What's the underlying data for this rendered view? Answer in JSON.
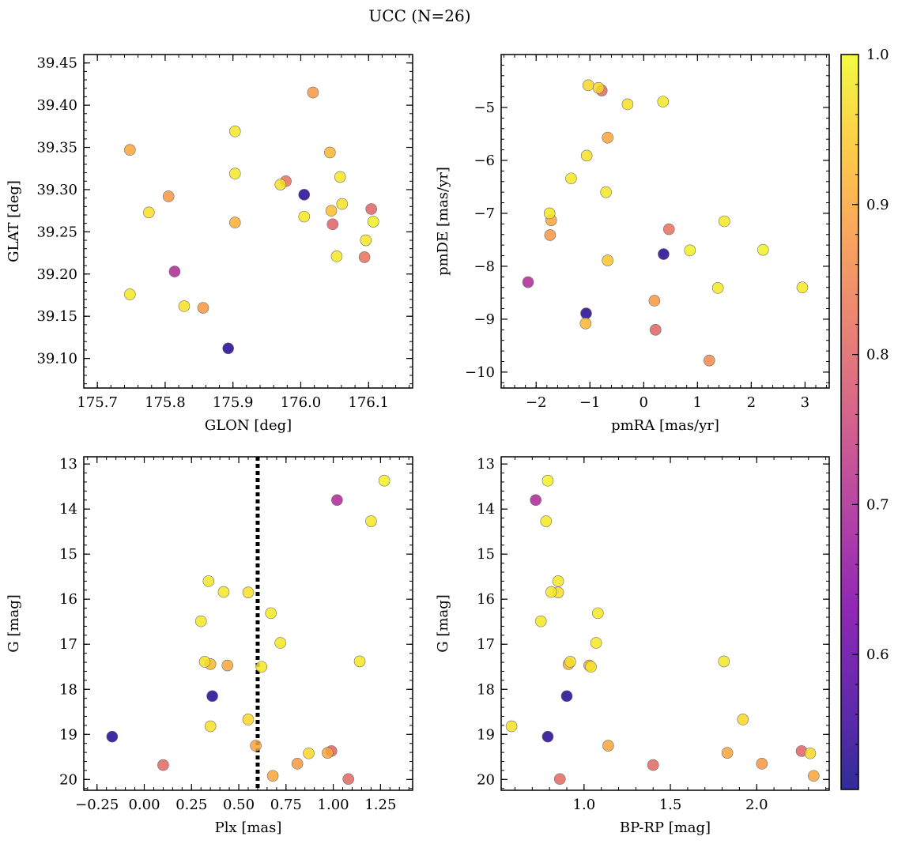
{
  "title": "UCC (N=26)",
  "colorbar": {
    "min": 0.51,
    "max": 1.0,
    "ticks": [
      0.6,
      0.7,
      0.8,
      0.9,
      1.0
    ],
    "tick_labels": [
      "0.6",
      "0.7",
      "0.8",
      "0.9",
      "1.0"
    ],
    "colormap": "plasma"
  },
  "chart_data": [
    {
      "type": "scatter",
      "panel": "top-left",
      "xlabel": "GLON [deg]",
      "ylabel": "GLAT [deg]",
      "xlim": [
        175.68,
        176.165
      ],
      "ylim": [
        39.065,
        39.46
      ],
      "xticks": [
        175.7,
        175.8,
        175.9,
        176.0,
        176.1
      ],
      "xtick_labels": [
        "175.7",
        "175.8",
        "175.9",
        "176.0",
        "176.1"
      ],
      "yticks": [
        39.1,
        39.15,
        39.2,
        39.25,
        39.3,
        39.35,
        39.4,
        39.45
      ],
      "ytick_labels": [
        "39.10",
        "39.15",
        "39.20",
        "39.25",
        "39.30",
        "39.35",
        "39.40",
        "39.45"
      ],
      "points": [
        {
          "x": 175.748,
          "y": 39.347,
          "c": 0.9
        },
        {
          "x": 175.748,
          "y": 39.176,
          "c": 0.98
        },
        {
          "x": 175.776,
          "y": 39.273,
          "c": 0.97
        },
        {
          "x": 175.805,
          "y": 39.292,
          "c": 0.88
        },
        {
          "x": 175.814,
          "y": 39.203,
          "c": 0.7
        },
        {
          "x": 175.828,
          "y": 39.162,
          "c": 0.97
        },
        {
          "x": 175.856,
          "y": 39.16,
          "c": 0.88
        },
        {
          "x": 175.893,
          "y": 39.112,
          "c": 0.53
        },
        {
          "x": 175.903,
          "y": 39.369,
          "c": 0.98
        },
        {
          "x": 175.903,
          "y": 39.319,
          "c": 0.98
        },
        {
          "x": 175.903,
          "y": 39.261,
          "c": 0.91
        },
        {
          "x": 175.97,
          "y": 39.306,
          "c": 0.97
        },
        {
          "x": 175.978,
          "y": 39.31,
          "c": 0.82
        },
        {
          "x": 176.005,
          "y": 39.294,
          "c": 0.53
        },
        {
          "x": 176.005,
          "y": 39.268,
          "c": 0.98
        },
        {
          "x": 176.018,
          "y": 39.415,
          "c": 0.88
        },
        {
          "x": 176.043,
          "y": 39.344,
          "c": 0.92
        },
        {
          "x": 176.045,
          "y": 39.275,
          "c": 0.93
        },
        {
          "x": 176.047,
          "y": 39.259,
          "c": 0.8
        },
        {
          "x": 176.053,
          "y": 39.221,
          "c": 0.98
        },
        {
          "x": 176.058,
          "y": 39.315,
          "c": 0.98
        },
        {
          "x": 176.061,
          "y": 39.283,
          "c": 0.97
        },
        {
          "x": 176.094,
          "y": 39.22,
          "c": 0.82
        },
        {
          "x": 176.096,
          "y": 39.24,
          "c": 0.98
        },
        {
          "x": 176.104,
          "y": 39.277,
          "c": 0.8
        },
        {
          "x": 176.107,
          "y": 39.262,
          "c": 0.99
        }
      ]
    },
    {
      "type": "scatter",
      "panel": "top-right",
      "xlabel": "pmRA [mas/yr]",
      "ylabel": "pmDE [mas/yr]",
      "xlim": [
        -2.65,
        3.45
      ],
      "ylim": [
        -10.3,
        -4.0
      ],
      "xticks": [
        -2,
        -1,
        0,
        1,
        2,
        3
      ],
      "xtick_labels": [
        "−2",
        "−1",
        "0",
        "1",
        "2",
        "3"
      ],
      "yticks": [
        -10,
        -9,
        -8,
        -7,
        -6,
        -5
      ],
      "ytick_labels": [
        "−10",
        "−9",
        "−8",
        "−7",
        "−6",
        "−5"
      ],
      "points": [
        {
          "x": -1.03,
          "y": -4.58,
          "c": 0.96
        },
        {
          "x": -0.84,
          "y": -4.63,
          "c": 0.96
        },
        {
          "x": -0.78,
          "y": -4.68,
          "c": 0.81
        },
        {
          "x": -0.3,
          "y": -4.94,
          "c": 0.97
        },
        {
          "x": 0.36,
          "y": -4.89,
          "c": 0.98
        },
        {
          "x": -1.06,
          "y": -5.91,
          "c": 0.97
        },
        {
          "x": -0.67,
          "y": -5.57,
          "c": 0.9
        },
        {
          "x": -1.35,
          "y": -6.34,
          "c": 0.98
        },
        {
          "x": -0.7,
          "y": -6.6,
          "c": 0.98
        },
        {
          "x": -1.75,
          "y": -7.0,
          "c": 0.98
        },
        {
          "x": -1.72,
          "y": -7.13,
          "c": 0.9
        },
        {
          "x": -1.74,
          "y": -7.41,
          "c": 0.88
        },
        {
          "x": 0.47,
          "y": -7.3,
          "c": 0.82
        },
        {
          "x": 1.5,
          "y": -7.15,
          "c": 0.98
        },
        {
          "x": 2.22,
          "y": -7.69,
          "c": 0.99
        },
        {
          "x": 0.86,
          "y": -7.7,
          "c": 0.99
        },
        {
          "x": 0.37,
          "y": -7.77,
          "c": 0.53
        },
        {
          "x": -0.67,
          "y": -7.89,
          "c": 0.94
        },
        {
          "x": -2.15,
          "y": -8.3,
          "c": 0.7
        },
        {
          "x": 1.38,
          "y": -8.41,
          "c": 0.98
        },
        {
          "x": 2.95,
          "y": -8.4,
          "c": 0.98
        },
        {
          "x": -1.07,
          "y": -8.89,
          "c": 0.53
        },
        {
          "x": -1.08,
          "y": -9.08,
          "c": 0.92
        },
        {
          "x": 0.2,
          "y": -8.65,
          "c": 0.88
        },
        {
          "x": 0.22,
          "y": -9.2,
          "c": 0.8
        },
        {
          "x": 1.22,
          "y": -9.78,
          "c": 0.86
        }
      ]
    },
    {
      "type": "scatter",
      "panel": "bottom-left",
      "xlabel": "Plx [mas]",
      "ylabel": "G [mag]",
      "xlim": [
        -0.32,
        1.42
      ],
      "ylim": [
        20.24,
        12.84
      ],
      "xticks": [
        -0.25,
        0.0,
        0.25,
        0.5,
        0.75,
        1.0,
        1.25
      ],
      "xtick_labels": [
        "−0.25",
        "0.00",
        "0.25",
        "0.50",
        "0.75",
        "1.00",
        "1.25"
      ],
      "yticks": [
        13,
        14,
        15,
        16,
        17,
        18,
        19,
        20
      ],
      "ytick_labels": [
        "13",
        "14",
        "15",
        "16",
        "17",
        "18",
        "19",
        "20"
      ],
      "vline": {
        "x": 0.6,
        "style": "dotted"
      },
      "points": [
        {
          "x": 1.27,
          "y": 13.37,
          "c": 0.99
        },
        {
          "x": 1.02,
          "y": 13.8,
          "c": 0.7
        },
        {
          "x": 1.2,
          "y": 14.27,
          "c": 0.98
        },
        {
          "x": 0.34,
          "y": 15.6,
          "c": 0.98
        },
        {
          "x": 0.42,
          "y": 15.84,
          "c": 0.98
        },
        {
          "x": 0.55,
          "y": 15.85,
          "c": 0.97
        },
        {
          "x": 0.3,
          "y": 16.49,
          "c": 0.98
        },
        {
          "x": 0.67,
          "y": 16.31,
          "c": 0.98
        },
        {
          "x": 0.72,
          "y": 16.97,
          "c": 0.98
        },
        {
          "x": 0.32,
          "y": 17.39,
          "c": 0.97
        },
        {
          "x": 0.35,
          "y": 17.44,
          "c": 0.92
        },
        {
          "x": 0.44,
          "y": 17.47,
          "c": 0.9
        },
        {
          "x": 0.62,
          "y": 17.5,
          "c": 0.98
        },
        {
          "x": 1.14,
          "y": 17.38,
          "c": 0.98
        },
        {
          "x": 0.36,
          "y": 18.15,
          "c": 0.53
        },
        {
          "x": 0.35,
          "y": 18.82,
          "c": 0.97
        },
        {
          "x": 0.55,
          "y": 18.67,
          "c": 0.96
        },
        {
          "x": -0.17,
          "y": 19.05,
          "c": 0.53
        },
        {
          "x": 0.59,
          "y": 19.25,
          "c": 0.9
        },
        {
          "x": 0.1,
          "y": 19.68,
          "c": 0.81
        },
        {
          "x": 0.87,
          "y": 19.42,
          "c": 0.96
        },
        {
          "x": 0.97,
          "y": 19.41,
          "c": 0.9
        },
        {
          "x": 0.99,
          "y": 19.37,
          "c": 0.8
        },
        {
          "x": 0.81,
          "y": 19.65,
          "c": 0.88
        },
        {
          "x": 0.68,
          "y": 19.92,
          "c": 0.9
        },
        {
          "x": 1.08,
          "y": 19.99,
          "c": 0.81
        }
      ]
    },
    {
      "type": "scatter",
      "panel": "bottom-right",
      "xlabel": "BP-RP [mag]",
      "ylabel": "G [mag]",
      "xlim": [
        0.52,
        2.42
      ],
      "ylim": [
        20.24,
        12.84
      ],
      "xticks": [
        1.0,
        1.5,
        2.0
      ],
      "xtick_labels": [
        "1.0",
        "1.5",
        "2.0"
      ],
      "yticks": [
        13,
        14,
        15,
        16,
        17,
        18,
        19,
        20
      ],
      "ytick_labels": [
        "13",
        "14",
        "15",
        "16",
        "17",
        "18",
        "19",
        "20"
      ],
      "points": [
        {
          "x": 0.79,
          "y": 13.37,
          "c": 0.99
        },
        {
          "x": 0.72,
          "y": 13.8,
          "c": 0.7
        },
        {
          "x": 0.78,
          "y": 14.27,
          "c": 0.98
        },
        {
          "x": 0.85,
          "y": 15.6,
          "c": 0.98
        },
        {
          "x": 0.81,
          "y": 15.84,
          "c": 0.98
        },
        {
          "x": 0.85,
          "y": 15.85,
          "c": 0.97
        },
        {
          "x": 0.75,
          "y": 16.49,
          "c": 0.98
        },
        {
          "x": 1.08,
          "y": 16.31,
          "c": 0.98
        },
        {
          "x": 1.07,
          "y": 16.97,
          "c": 0.98
        },
        {
          "x": 0.92,
          "y": 17.39,
          "c": 0.97
        },
        {
          "x": 0.91,
          "y": 17.44,
          "c": 0.92
        },
        {
          "x": 1.03,
          "y": 17.47,
          "c": 0.9
        },
        {
          "x": 1.04,
          "y": 17.5,
          "c": 0.98
        },
        {
          "x": 1.81,
          "y": 17.38,
          "c": 0.98
        },
        {
          "x": 0.9,
          "y": 18.15,
          "c": 0.53
        },
        {
          "x": 0.58,
          "y": 18.82,
          "c": 0.97
        },
        {
          "x": 1.92,
          "y": 18.67,
          "c": 0.96
        },
        {
          "x": 0.79,
          "y": 19.05,
          "c": 0.53
        },
        {
          "x": 1.14,
          "y": 19.25,
          "c": 0.9
        },
        {
          "x": 1.4,
          "y": 19.68,
          "c": 0.81
        },
        {
          "x": 2.31,
          "y": 19.42,
          "c": 0.96
        },
        {
          "x": 1.83,
          "y": 19.41,
          "c": 0.9
        },
        {
          "x": 2.26,
          "y": 19.37,
          "c": 0.8
        },
        {
          "x": 2.03,
          "y": 19.65,
          "c": 0.88
        },
        {
          "x": 2.33,
          "y": 19.92,
          "c": 0.9
        },
        {
          "x": 0.86,
          "y": 19.99,
          "c": 0.81
        }
      ]
    }
  ]
}
